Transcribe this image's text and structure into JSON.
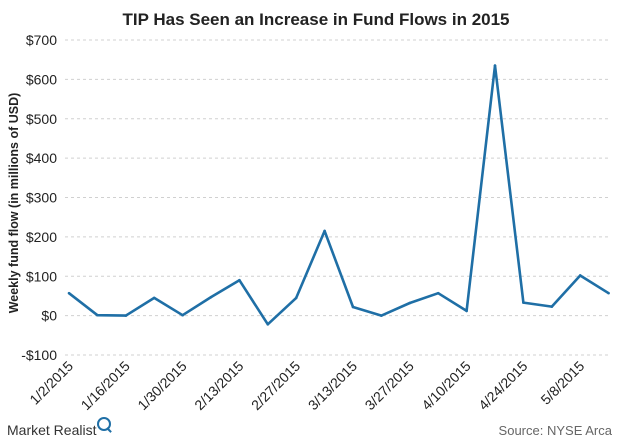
{
  "chart_data": {
    "type": "line",
    "title": "TIP Has Seen an Increase in Fund Flows in 2015",
    "ylabel": "Weekly fund flow (in millions of USD)",
    "xlabel": "",
    "ylim": [
      -100,
      700
    ],
    "yticks": [
      -100,
      0,
      100,
      200,
      300,
      400,
      500,
      600,
      700
    ],
    "ytick_labels": [
      "-$100",
      "$0",
      "$100",
      "$200",
      "$300",
      "$400",
      "$500",
      "$600",
      "$700"
    ],
    "xtick_labels": [
      "1/2/2015",
      "1/16/2015",
      "1/30/2015",
      "2/13/2015",
      "2/27/2015",
      "3/13/2015",
      "3/27/2015",
      "4/10/2015",
      "4/24/2015",
      "5/8/2015"
    ],
    "grid": true,
    "colors": {
      "line": "#1f6fa6",
      "grid": "#d0d0d0"
    },
    "series": [
      {
        "values": [
          57,
          1,
          0,
          45,
          1,
          47,
          90,
          -22,
          45,
          215,
          22,
          0,
          32,
          57,
          12,
          635,
          33,
          23,
          102,
          57
        ]
      }
    ]
  },
  "footer": {
    "brand": "Market Realist",
    "source": "Source: NYSE Arca"
  }
}
